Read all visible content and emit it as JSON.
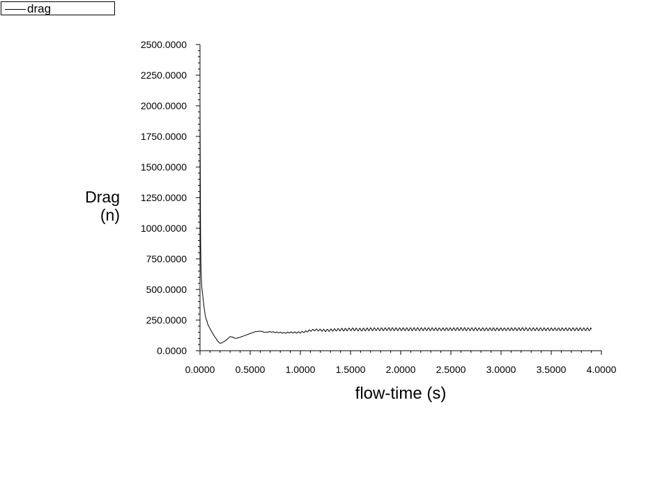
{
  "chart_data": {
    "type": "line",
    "title": "",
    "xlabel": "flow-time (s)",
    "ylabel": [
      "Drag",
      "(n)"
    ],
    "xlim": [
      0,
      4
    ],
    "ylim": [
      0,
      2500
    ],
    "x_ticks": [
      0,
      0.5,
      1,
      1.5,
      2,
      2.5,
      3,
      3.5,
      4
    ],
    "x_tick_labels": [
      "0.0000",
      "0.5000",
      "1.0000",
      "1.5000",
      "2.0000",
      "2.5000",
      "3.0000",
      "3.5000",
      "4.0000"
    ],
    "y_ticks": [
      0,
      250,
      500,
      750,
      1000,
      1250,
      1500,
      1750,
      2000,
      2250,
      2500
    ],
    "y_tick_labels": [
      "0.0000",
      "250.0000",
      "500.0000",
      "750.0000",
      "1000.0000",
      "1250.0000",
      "1500.0000",
      "1750.0000",
      "2000.0000",
      "2250.0000",
      "2500.0000"
    ],
    "legend_position": "top-left",
    "grid": false,
    "series": [
      {
        "name": "drag",
        "color": "#000000",
        "x": [
          0,
          0.003,
          0.006,
          0.01,
          0.015,
          0.02,
          0.025,
          0.03,
          0.04,
          0.05,
          0.06,
          0.07,
          0.08,
          0.1,
          0.12,
          0.15,
          0.18,
          0.2,
          0.22,
          0.25,
          0.28,
          0.3,
          0.33,
          0.35,
          0.38,
          0.4,
          0.45,
          0.5,
          0.55,
          0.6,
          0.65,
          0.7,
          0.75,
          0.8,
          0.85,
          0.9,
          0.95,
          1.0,
          1.05,
          1.1,
          1.15,
          1.2,
          1.25,
          1.3,
          1.35,
          1.4,
          1.45,
          1.5,
          1.6,
          1.7,
          1.8,
          1.9,
          2.0,
          2.2,
          2.4,
          2.6,
          2.8,
          3.0,
          3.2,
          3.4,
          3.6,
          3.8,
          3.9
        ],
        "values": [
          2030,
          1400,
          900,
          650,
          560,
          500,
          470,
          430,
          360,
          300,
          260,
          240,
          210,
          180,
          150,
          110,
          75,
          60,
          65,
          80,
          100,
          115,
          110,
          100,
          105,
          110,
          125,
          140,
          155,
          160,
          150,
          155,
          150,
          148,
          145,
          150,
          148,
          150,
          155,
          165,
          170,
          168,
          165,
          168,
          170,
          172,
          172,
          175,
          172,
          175,
          175,
          176,
          175,
          176,
          175,
          176,
          175,
          175,
          176,
          175,
          175,
          175,
          175
        ],
        "oscillation_amplitude": 12
      }
    ]
  }
}
